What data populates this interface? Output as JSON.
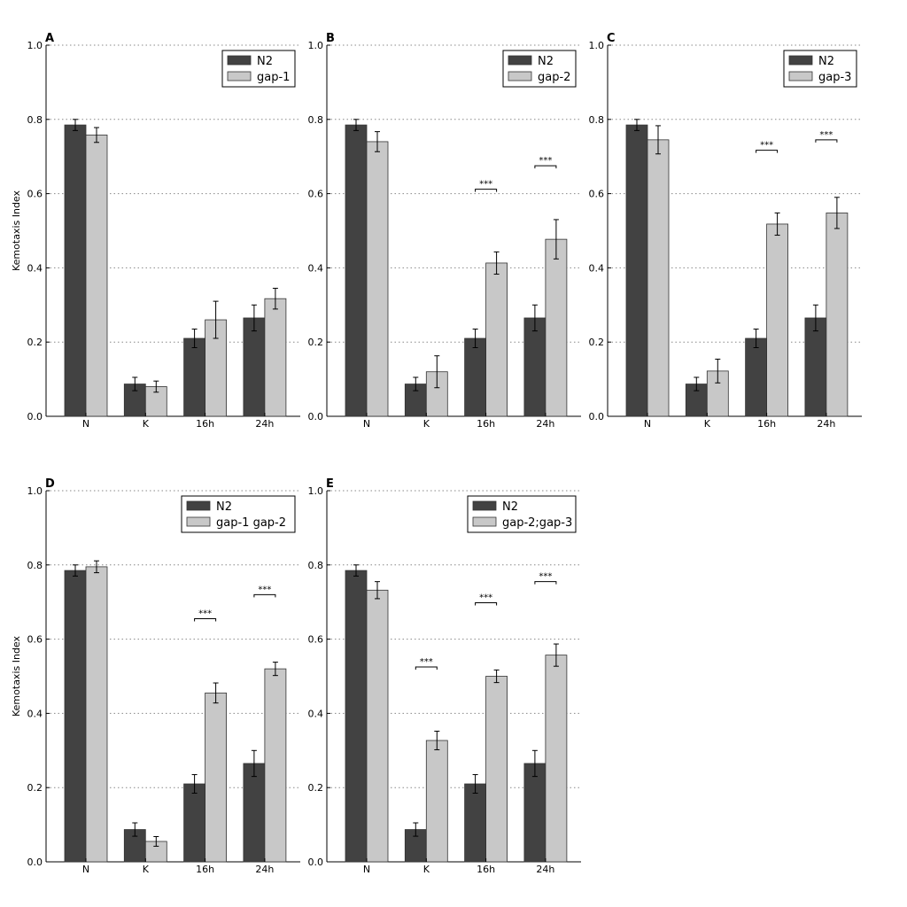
{
  "chart_data": [
    {
      "type": "bar",
      "panel": "A",
      "ylabel": "Kemotaxis Index",
      "ylim": [
        0,
        1.0
      ],
      "yticks": [
        "0.0",
        "0.2",
        "0.4",
        "0.6",
        "0.8",
        "1.0"
      ],
      "grid": "horizontal dotted",
      "legend_position": "top-right",
      "categories": [
        "N",
        "K",
        "16h",
        "24h"
      ],
      "series": [
        {
          "name": "N2",
          "values": [
            0.785,
            0.087,
            0.21,
            0.265
          ],
          "errors": [
            0.015,
            0.018,
            0.025,
            0.035
          ]
        },
        {
          "name": "gap-1",
          "values": [
            0.758,
            0.08,
            0.26,
            0.317
          ],
          "errors": [
            0.02,
            0.015,
            0.05,
            0.028
          ]
        }
      ],
      "significance": []
    },
    {
      "type": "bar",
      "panel": "B",
      "ylabel": "",
      "ylim": [
        0,
        1.0
      ],
      "yticks": [
        "0.0",
        "0.2",
        "0.4",
        "0.6",
        "0.8",
        "1.0"
      ],
      "grid": "horizontal dotted",
      "legend_position": "top-right",
      "categories": [
        "N",
        "K",
        "16h",
        "24h"
      ],
      "series": [
        {
          "name": "N2",
          "values": [
            0.785,
            0.087,
            0.21,
            0.265
          ],
          "errors": [
            0.015,
            0.018,
            0.025,
            0.035
          ]
        },
        {
          "name": "gap-2",
          "values": [
            0.74,
            0.12,
            0.413,
            0.477
          ],
          "errors": [
            0.027,
            0.043,
            0.03,
            0.053
          ]
        }
      ],
      "significance": [
        {
          "category": "16h",
          "label": "***",
          "y": 0.612
        },
        {
          "category": "24h",
          "label": "***",
          "y": 0.675
        }
      ]
    },
    {
      "type": "bar",
      "panel": "C",
      "ylabel": "",
      "ylim": [
        0,
        1.0
      ],
      "yticks": [
        "0.0",
        "0.2",
        "0.4",
        "0.6",
        "0.8",
        "1.0"
      ],
      "grid": "horizontal dotted",
      "legend_position": "top-right",
      "categories": [
        "N",
        "K",
        "16h",
        "24h"
      ],
      "series": [
        {
          "name": "N2",
          "values": [
            0.785,
            0.087,
            0.21,
            0.265
          ],
          "errors": [
            0.015,
            0.018,
            0.025,
            0.035
          ]
        },
        {
          "name": "gap-3",
          "values": [
            0.745,
            0.122,
            0.518,
            0.548
          ],
          "errors": [
            0.038,
            0.032,
            0.03,
            0.042
          ]
        }
      ],
      "significance": [
        {
          "category": "16h",
          "label": "***",
          "y": 0.717
        },
        {
          "category": "24h",
          "label": "***",
          "y": 0.745
        }
      ]
    },
    {
      "type": "bar",
      "panel": "D",
      "ylabel": "Kemotaxis Index",
      "ylim": [
        0,
        1.0
      ],
      "yticks": [
        "0.0",
        "0.2",
        "0.4",
        "0.6",
        "0.8",
        "1.0"
      ],
      "grid": "horizontal dotted",
      "legend_position": "top-right",
      "categories": [
        "N",
        "K",
        "16h",
        "24h"
      ],
      "series": [
        {
          "name": "N2",
          "values": [
            0.785,
            0.087,
            0.21,
            0.265
          ],
          "errors": [
            0.015,
            0.018,
            0.025,
            0.035
          ]
        },
        {
          "name": "gap-1 gap-2",
          "values": [
            0.795,
            0.055,
            0.455,
            0.52
          ],
          "errors": [
            0.016,
            0.013,
            0.027,
            0.018
          ]
        }
      ],
      "significance": [
        {
          "category": "16h",
          "label": "***",
          "y": 0.655
        },
        {
          "category": "24h",
          "label": "***",
          "y": 0.72
        }
      ]
    },
    {
      "type": "bar",
      "panel": "E",
      "ylabel": "",
      "ylim": [
        0,
        1.0
      ],
      "yticks": [
        "0.0",
        "0.2",
        "0.4",
        "0.6",
        "0.8",
        "1.0"
      ],
      "grid": "horizontal dotted",
      "legend_position": "top-right",
      "categories": [
        "N",
        "K",
        "16h",
        "24h"
      ],
      "series": [
        {
          "name": "N2",
          "values": [
            0.785,
            0.087,
            0.21,
            0.265
          ],
          "errors": [
            0.015,
            0.018,
            0.025,
            0.035
          ]
        },
        {
          "name": "gap-2;gap-3",
          "values": [
            0.732,
            0.327,
            0.5,
            0.557
          ],
          "errors": [
            0.023,
            0.025,
            0.017,
            0.03
          ]
        }
      ],
      "significance": [
        {
          "category": "K",
          "label": "***",
          "y": 0.525
        },
        {
          "category": "16h",
          "label": "***",
          "y": 0.698
        },
        {
          "category": "24h",
          "label": "***",
          "y": 0.755
        }
      ]
    }
  ],
  "colors": {
    "series1": "#424242",
    "series2": "#c8c8c8",
    "grid": "#888888",
    "axis": "#000000"
  }
}
